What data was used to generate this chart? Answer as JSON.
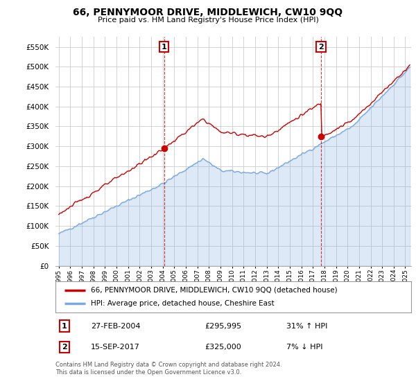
{
  "title": "66, PENNYMOOR DRIVE, MIDDLEWICH, CW10 9QQ",
  "subtitle": "Price paid vs. HM Land Registry's House Price Index (HPI)",
  "legend_line1": "66, PENNYMOOR DRIVE, MIDDLEWICH, CW10 9QQ (detached house)",
  "legend_line2": "HPI: Average price, detached house, Cheshire East",
  "footer1": "Contains HM Land Registry data © Crown copyright and database right 2024.",
  "footer2": "This data is licensed under the Open Government Licence v3.0.",
  "sale1_label": "27-FEB-2004",
  "sale1_price": "£295,995",
  "sale1_hpi": "31% ↑ HPI",
  "sale1_year": 2004.12,
  "sale1_value": 295995,
  "sale2_label": "15-SEP-2017",
  "sale2_price": "£325,000",
  "sale2_hpi": "7% ↓ HPI",
  "sale2_year": 2017.71,
  "sale2_value": 325000,
  "red_color": "#cc0000",
  "blue_color": "#7aaadd",
  "fill_color": "#ddeeff",
  "marker_box_color": "#cc0000",
  "ylim_max": 575000,
  "xlim_start": 1994.7,
  "xlim_end": 2025.5,
  "background_color": "#ffffff",
  "grid_color": "#cccccc"
}
